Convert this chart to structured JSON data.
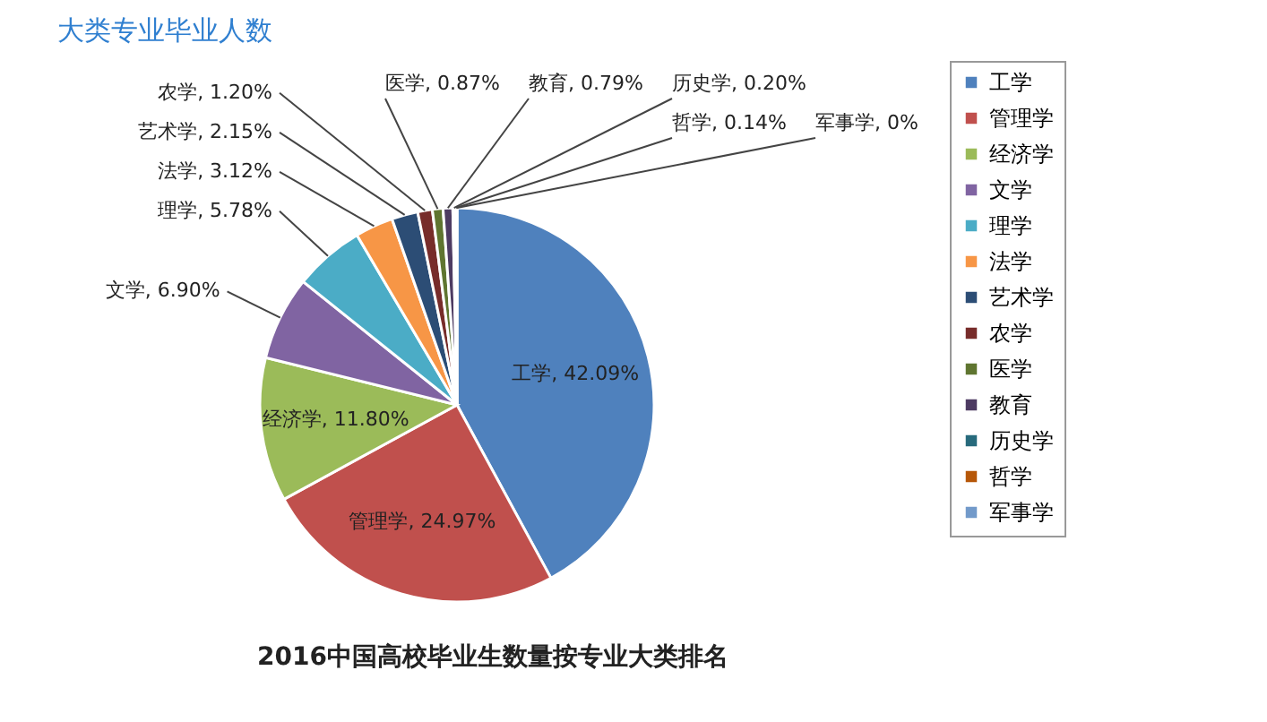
{
  "chart_data": {
    "type": "pie",
    "title": "2016中国高校毕业生数量按专业大类排名",
    "annotations": [
      "大类专业毕业人数"
    ],
    "categories": [
      "工学",
      "管理学",
      "经济学",
      "文学",
      "理学",
      "法学",
      "艺术学",
      "农学",
      "医学",
      "教育",
      "历史学",
      "哲学",
      "军事学"
    ],
    "values": [
      42.09,
      24.97,
      11.8,
      6.9,
      5.78,
      3.12,
      2.15,
      1.2,
      0.87,
      0.79,
      0.2,
      0.14,
      0
    ],
    "value_labels": [
      "工学, 42.09%",
      "管理学, 24.97%",
      "经济学, 11.80%",
      "文学, 6.90%",
      "理学, 5.78%",
      "法学, 3.12%",
      "艺术学, 2.15%",
      "农学, 1.20%",
      "医学, 0.87%",
      "教育, 0.79%",
      "历史学, 0.20%",
      "哲学, 0.14%",
      "军事学, 0%"
    ],
    "colors": [
      "#4f81bd",
      "#c0504d",
      "#9bbb59",
      "#8064a2",
      "#4bacc6",
      "#f79646",
      "#2c4d75",
      "#772c2a",
      "#5f7530",
      "#4d3b62",
      "#276a7c",
      "#b65708",
      "#729aca"
    ],
    "legend": "right"
  }
}
